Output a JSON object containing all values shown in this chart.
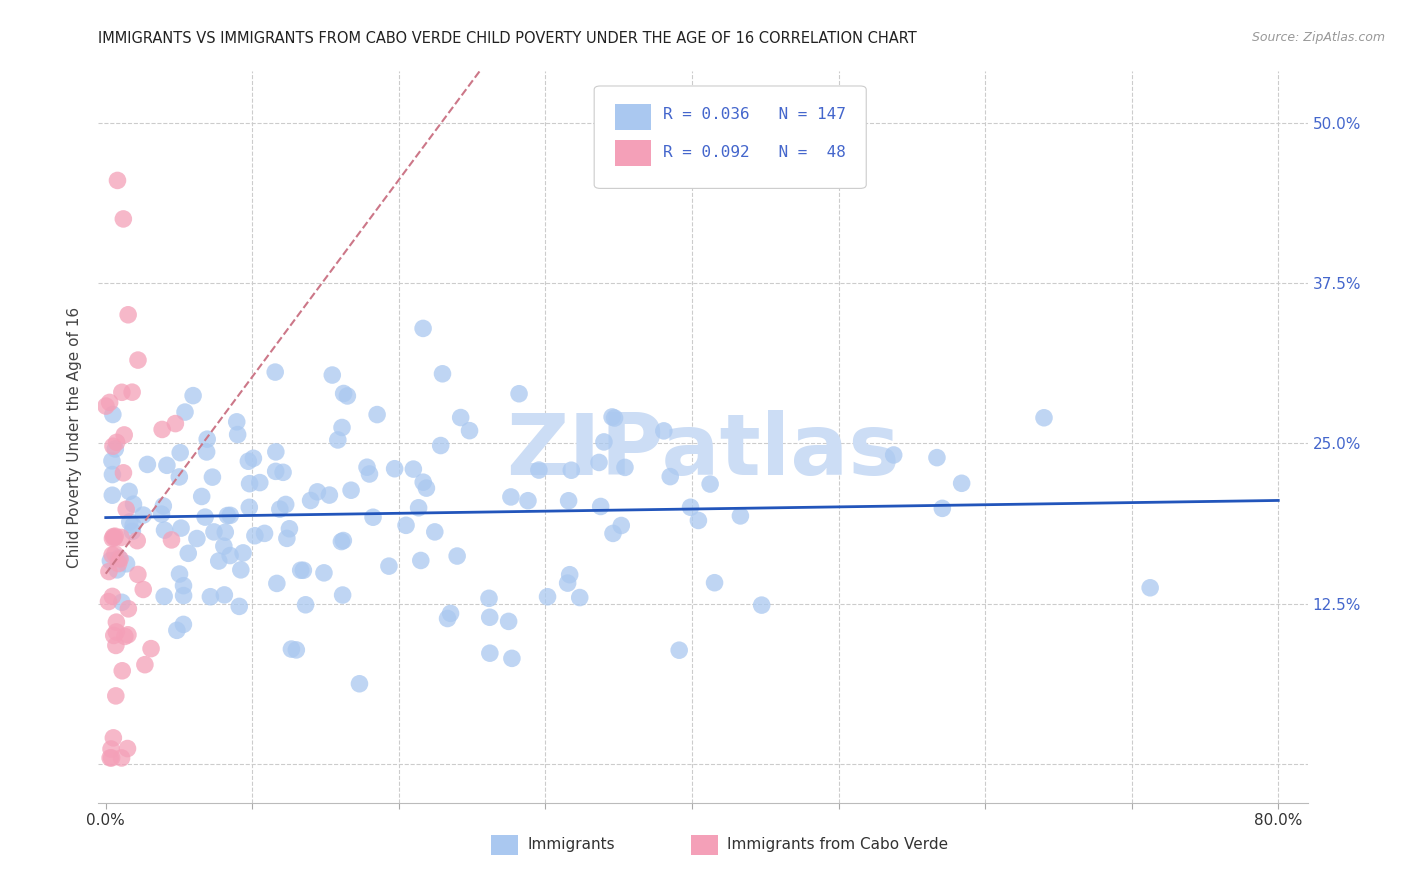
{
  "title": "IMMIGRANTS VS IMMIGRANTS FROM CABO VERDE CHILD POVERTY UNDER THE AGE OF 16 CORRELATION CHART",
  "source": "Source: ZipAtlas.com",
  "ylabel": "Child Poverty Under the Age of 16",
  "xlim": [
    -0.005,
    0.82
  ],
  "ylim": [
    -0.03,
    0.54
  ],
  "xtick_positions": [
    0.0,
    0.1,
    0.2,
    0.3,
    0.4,
    0.5,
    0.6,
    0.7,
    0.8
  ],
  "xticklabels": [
    "0.0%",
    "",
    "",
    "",
    "",
    "",
    "",
    "",
    "80.0%"
  ],
  "ytick_positions": [
    0.0,
    0.125,
    0.25,
    0.375,
    0.5
  ],
  "yticklabels_right": [
    "",
    "12.5%",
    "25.0%",
    "37.5%",
    "50.0%"
  ],
  "legend_R1": "0.036",
  "legend_N1": "147",
  "legend_R2": "0.092",
  "legend_N2": " 48",
  "blue_color": "#aac8f0",
  "pink_color": "#f4a0b8",
  "trend_blue_color": "#2255bb",
  "trend_pink_color": "#cc7788",
  "watermark_color": "#ccddf5",
  "grid_color": "#cccccc",
  "right_axis_color": "#4466cc",
  "title_color": "#222222",
  "source_color": "#999999"
}
